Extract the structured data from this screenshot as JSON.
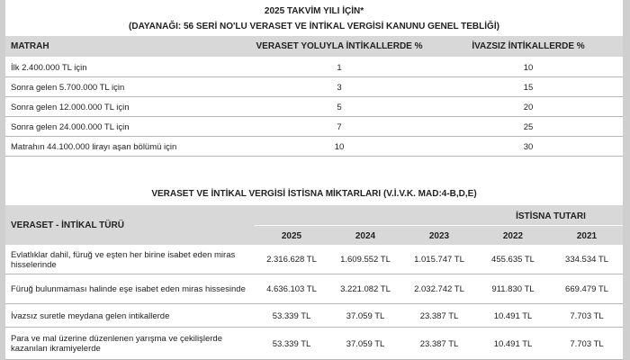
{
  "table1": {
    "title": "2025 TAKVİM YILI İÇİN*",
    "subtitle": "(DAYANAĞI: 56 SERİ NO'LU VERASET VE İNTİKAL VERGİSİ KANUNU GENEL TEBLİĞİ)",
    "headers": [
      "MATRAH",
      "VERASET YOLUYLA İNTİKALLERDE %",
      "İVAZSIZ İNTİKALLERDE %"
    ],
    "rows": [
      [
        "İlk 2.400.000  TL için",
        "1",
        "10"
      ],
      [
        "Sonra gelen 5.700.000 TL için",
        "3",
        "15"
      ],
      [
        "Sonra gelen 12.000.000 TL için",
        "5",
        "20"
      ],
      [
        "Sonra gelen 24.000.000  TL için",
        "7",
        "25"
      ],
      [
        "Matrahın 44.100.000 lirayı aşan bölümü için",
        "10",
        "30"
      ]
    ]
  },
  "table2": {
    "title": "VERASET VE İNTİKAL VERGİSİ İSTİSNA MİKTARLARI (V.İ.V.K. MAD:4-B,D,E)",
    "header": "VERASET - İNTİKAL TÜRÜ",
    "group_header": "İSTİSNA TUTARI",
    "years": [
      "2025",
      "2024",
      "2023",
      "2022",
      "2021"
    ],
    "rows": [
      [
        "Evlatlıklar dahil, füruğ ve eşten her birine isabet eden miras hisselerinde",
        "2.316.628 TL",
        "1.609.552 TL",
        "1.015.747 TL",
        "455.635 TL",
        "334.534 TL"
      ],
      [
        "Füruğ bulunmaması halinde eşe isabet eden miras hissesinde",
        "4.636.103 TL",
        "3.221.082 TL",
        "2.032.742 TL",
        "911.830 TL",
        "669.479 TL"
      ],
      [
        "İvazsız suretle meydana gelen intikallerde",
        "53.339 TL",
        "37.059 TL",
        "23.387 TL",
        "10.491 TL",
        "7.703 TL"
      ],
      [
        "Para ve mal üzerine düzenlenen yarışma ve çekilişlerde kazanılan ikramiyelerde",
        "53.339 TL",
        "37.059 TL",
        "23.387 TL",
        "10.491 TL",
        "7.703 TL"
      ]
    ]
  }
}
